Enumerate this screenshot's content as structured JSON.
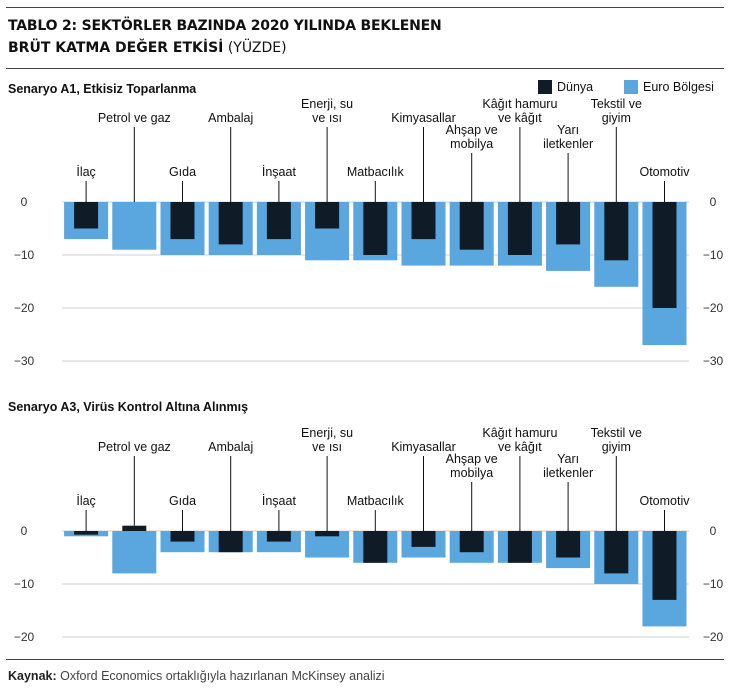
{
  "header": {
    "title_line1": "TABLO 2: SEKTÖRLER BAZINDA 2020 YILINDA BEKLENEN",
    "title_line2_bold": "BRÜT KATMA DEĞER ETKİSİ",
    "title_line2_rest": " (YÜZDE)"
  },
  "legend": {
    "world": {
      "label": "Dünya",
      "color": "#0f1c28"
    },
    "euro": {
      "label": "Euro Bölgesi",
      "color": "#5aa6de"
    }
  },
  "source": {
    "label": "Kaynak:",
    "text": " Oxford Economics ortaklığıyla hazırlanan McKinsey analizi"
  },
  "chart_data": [
    {
      "type": "bar",
      "title": "Senaryo A1, Etkisiz Toparlanma",
      "categories": [
        "İlaç",
        "Petrol ve gaz",
        "Gıda",
        "Ambalaj",
        "İnşaat",
        "Enerji, su ve ısı",
        "Matbacılık",
        "Kimyasallar",
        "Ahşap ve mobilya",
        "Kâğıt hamuru ve kâğıt",
        "Yarı iletkenler",
        "Tekstil ve giyim",
        "Otomotiv"
      ],
      "series": [
        {
          "name": "Euro Bölgesi",
          "values": [
            -7,
            -9,
            -10,
            -10,
            -10,
            -11,
            -11,
            -12,
            -12,
            -12,
            -13,
            -16,
            -27
          ]
        },
        {
          "name": "Dünya",
          "values": [
            -5,
            null,
            -7,
            -8,
            -7,
            -5,
            -10,
            -7,
            -9,
            -10,
            -8,
            -11,
            -20
          ]
        }
      ],
      "ylim": [
        -30,
        0
      ],
      "yticks": [
        "0",
        "−10",
        "−20",
        "−30"
      ],
      "tick_values": [
        0,
        -10,
        -20,
        -30
      ]
    },
    {
      "type": "bar",
      "title": "Senaryo A3, Virüs Kontrol Altına Alınmış",
      "categories": [
        "İlaç",
        "Petrol ve gaz",
        "Gıda",
        "Ambalaj",
        "İnşaat",
        "Enerji, su ve ısı",
        "Matbacılık",
        "Kimyasallar",
        "Ahşap ve mobilya",
        "Kâğıt hamuru ve kâğıt",
        "Yarı iletkenler",
        "Tekstil ve giyim",
        "Otomotiv"
      ],
      "series": [
        {
          "name": "Euro Bölgesi",
          "values": [
            -1,
            -8,
            -4,
            -4,
            -4,
            -5,
            -6,
            -5,
            -6,
            -6,
            -7,
            -10,
            -18
          ]
        },
        {
          "name": "Dünya",
          "values": [
            -0.7,
            1,
            -2,
            -4,
            -2,
            -1,
            -6,
            -3,
            -4,
            -6,
            -5,
            -8,
            -13
          ]
        }
      ],
      "ylim": [
        -20,
        0
      ],
      "yticks": [
        "0",
        "−10",
        "−20"
      ],
      "tick_values": [
        0,
        -10,
        -20
      ]
    }
  ]
}
